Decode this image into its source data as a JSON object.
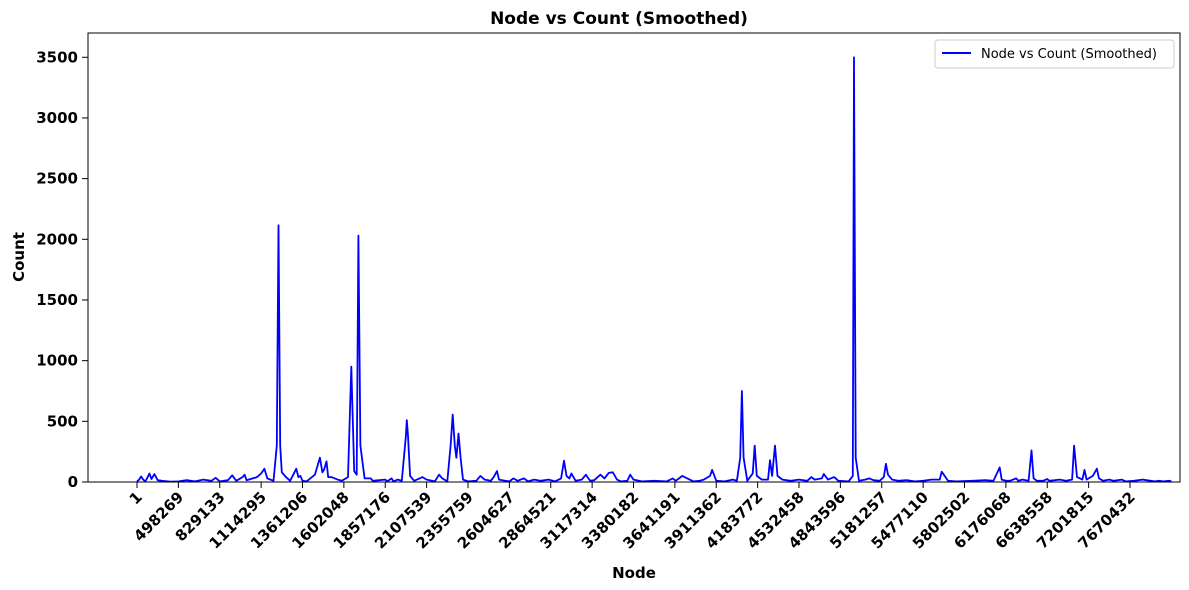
{
  "chart_data": {
    "type": "line",
    "title": "Node vs Count (Smoothed)",
    "xlabel": "Node",
    "ylabel": "Count",
    "ylim": [
      0,
      3700
    ],
    "yticks": [
      0,
      500,
      1000,
      1500,
      2000,
      2500,
      3000,
      3500
    ],
    "grid": false,
    "legend_position": "top-right",
    "colors": {
      "line": "#0000ff",
      "axes": "#000000"
    },
    "categories": [
      "1",
      "498269",
      "829133",
      "1114295",
      "1361206",
      "1602048",
      "1857176",
      "2107539",
      "2355759",
      "2604627",
      "2864521",
      "3117314",
      "3380182",
      "3641191",
      "3911362",
      "4183772",
      "4532458",
      "4843596",
      "5181257",
      "5477110",
      "5802502",
      "6176068",
      "6638558",
      "7201815",
      "7670432"
    ],
    "series": [
      {
        "name": "Node vs Count (Smoothed)",
        "points": [
          [
            0,
            5
          ],
          [
            0.05,
            20
          ],
          [
            0.1,
            45
          ],
          [
            0.15,
            20
          ],
          [
            0.2,
            5
          ],
          [
            0.25,
            35
          ],
          [
            0.3,
            70
          ],
          [
            0.35,
            25
          ],
          [
            0.42,
            65
          ],
          [
            0.5,
            15
          ],
          [
            0.6,
            10
          ],
          [
            0.8,
            3
          ],
          [
            1.0,
            5
          ],
          [
            1.2,
            15
          ],
          [
            1.4,
            5
          ],
          [
            1.6,
            20
          ],
          [
            1.8,
            10
          ],
          [
            1.9,
            35
          ],
          [
            2.0,
            5
          ],
          [
            2.2,
            15
          ],
          [
            2.3,
            55
          ],
          [
            2.4,
            10
          ],
          [
            2.55,
            40
          ],
          [
            2.6,
            60
          ],
          [
            2.65,
            15
          ],
          [
            2.8,
            30
          ],
          [
            2.9,
            40
          ],
          [
            3.0,
            70
          ],
          [
            3.08,
            110
          ],
          [
            3.15,
            30
          ],
          [
            3.3,
            10
          ],
          [
            3.38,
            300
          ],
          [
            3.42,
            2115
          ],
          [
            3.46,
            300
          ],
          [
            3.5,
            80
          ],
          [
            3.6,
            40
          ],
          [
            3.7,
            10
          ],
          [
            3.85,
            110
          ],
          [
            3.9,
            40
          ],
          [
            3.95,
            50
          ],
          [
            4.0,
            10
          ],
          [
            4.1,
            5
          ],
          [
            4.3,
            60
          ],
          [
            4.42,
            200
          ],
          [
            4.48,
            80
          ],
          [
            4.52,
            100
          ],
          [
            4.58,
            170
          ],
          [
            4.62,
            40
          ],
          [
            4.7,
            40
          ],
          [
            4.78,
            30
          ],
          [
            4.85,
            20
          ],
          [
            4.95,
            10
          ],
          [
            5.1,
            40
          ],
          [
            5.18,
            950
          ],
          [
            5.25,
            90
          ],
          [
            5.31,
            60
          ],
          [
            5.35,
            2030
          ],
          [
            5.4,
            300
          ],
          [
            5.5,
            30
          ],
          [
            5.65,
            30
          ],
          [
            5.7,
            10
          ],
          [
            6.0,
            20
          ],
          [
            6.05,
            5
          ],
          [
            6.15,
            30
          ],
          [
            6.2,
            5
          ],
          [
            6.3,
            20
          ],
          [
            6.4,
            10
          ],
          [
            6.5,
            380
          ],
          [
            6.52,
            510
          ],
          [
            6.55,
            380
          ],
          [
            6.6,
            50
          ],
          [
            6.7,
            10
          ],
          [
            6.9,
            40
          ],
          [
            7.0,
            20
          ],
          [
            7.2,
            5
          ],
          [
            7.3,
            60
          ],
          [
            7.38,
            30
          ],
          [
            7.5,
            5
          ],
          [
            7.58,
            300
          ],
          [
            7.63,
            555
          ],
          [
            7.68,
            300
          ],
          [
            7.72,
            200
          ],
          [
            7.77,
            400
          ],
          [
            7.82,
            200
          ],
          [
            7.88,
            20
          ],
          [
            8.0,
            5
          ],
          [
            8.2,
            10
          ],
          [
            8.3,
            50
          ],
          [
            8.4,
            20
          ],
          [
            8.55,
            10
          ],
          [
            8.62,
            40
          ],
          [
            8.7,
            90
          ],
          [
            8.75,
            20
          ],
          [
            8.9,
            10
          ],
          [
            9.0,
            5
          ],
          [
            9.1,
            30
          ],
          [
            9.2,
            10
          ],
          [
            9.35,
            30
          ],
          [
            9.45,
            5
          ],
          [
            9.6,
            20
          ],
          [
            9.75,
            10
          ],
          [
            9.95,
            20
          ],
          [
            10.1,
            5
          ],
          [
            10.25,
            30
          ],
          [
            10.32,
            175
          ],
          [
            10.38,
            50
          ],
          [
            10.45,
            30
          ],
          [
            10.5,
            70
          ],
          [
            10.6,
            10
          ],
          [
            10.75,
            20
          ],
          [
            10.85,
            60
          ],
          [
            10.95,
            10
          ],
          [
            11.05,
            15
          ],
          [
            11.2,
            60
          ],
          [
            11.3,
            30
          ],
          [
            11.4,
            75
          ],
          [
            11.5,
            80
          ],
          [
            11.6,
            20
          ],
          [
            11.7,
            5
          ],
          [
            11.85,
            10
          ],
          [
            11.92,
            60
          ],
          [
            12.0,
            20
          ],
          [
            12.2,
            5
          ],
          [
            12.5,
            10
          ],
          [
            12.8,
            5
          ],
          [
            12.95,
            30
          ],
          [
            13.02,
            10
          ],
          [
            13.1,
            30
          ],
          [
            13.18,
            50
          ],
          [
            13.3,
            30
          ],
          [
            13.45,
            5
          ],
          [
            13.6,
            10
          ],
          [
            13.7,
            20
          ],
          [
            13.85,
            50
          ],
          [
            13.9,
            100
          ],
          [
            14.0,
            10
          ],
          [
            14.2,
            5
          ],
          [
            14.4,
            20
          ],
          [
            14.5,
            10
          ],
          [
            14.58,
            200
          ],
          [
            14.62,
            750
          ],
          [
            14.66,
            200
          ],
          [
            14.75,
            10
          ],
          [
            14.88,
            70
          ],
          [
            14.93,
            300
          ],
          [
            14.98,
            50
          ],
          [
            15.1,
            20
          ],
          [
            15.25,
            20
          ],
          [
            15.3,
            180
          ],
          [
            15.35,
            50
          ],
          [
            15.42,
            300
          ],
          [
            15.48,
            50
          ],
          [
            15.6,
            20
          ],
          [
            15.8,
            10
          ],
          [
            16.0,
            20
          ],
          [
            16.2,
            10
          ],
          [
            16.3,
            40
          ],
          [
            16.38,
            20
          ],
          [
            16.55,
            30
          ],
          [
            16.6,
            65
          ],
          [
            16.7,
            20
          ],
          [
            16.85,
            40
          ],
          [
            16.95,
            10
          ],
          [
            17.2,
            5
          ],
          [
            17.3,
            50
          ],
          [
            17.33,
            3500
          ],
          [
            17.37,
            200
          ],
          [
            17.45,
            10
          ],
          [
            17.6,
            20
          ],
          [
            17.7,
            30
          ],
          [
            17.8,
            15
          ],
          [
            17.95,
            10
          ],
          [
            18.05,
            40
          ],
          [
            18.1,
            150
          ],
          [
            18.15,
            60
          ],
          [
            18.25,
            20
          ],
          [
            18.4,
            10
          ],
          [
            18.6,
            15
          ],
          [
            18.8,
            5
          ],
          [
            19.0,
            10
          ],
          [
            19.2,
            20
          ],
          [
            19.4,
            20
          ],
          [
            19.45,
            85
          ],
          [
            19.5,
            60
          ],
          [
            19.6,
            10
          ],
          [
            19.8,
            5
          ],
          [
            20.2,
            10
          ],
          [
            20.5,
            15
          ],
          [
            20.7,
            10
          ],
          [
            20.85,
            120
          ],
          [
            20.9,
            20
          ],
          [
            21.0,
            10
          ],
          [
            21.1,
            10
          ],
          [
            21.25,
            30
          ],
          [
            21.3,
            10
          ],
          [
            21.4,
            20
          ],
          [
            21.55,
            10
          ],
          [
            21.62,
            260
          ],
          [
            21.67,
            30
          ],
          [
            21.75,
            10
          ],
          [
            21.9,
            10
          ],
          [
            22.0,
            25
          ],
          [
            22.05,
            10
          ],
          [
            22.3,
            20
          ],
          [
            22.45,
            10
          ],
          [
            22.6,
            20
          ],
          [
            22.65,
            300
          ],
          [
            22.72,
            40
          ],
          [
            22.85,
            20
          ],
          [
            22.9,
            100
          ],
          [
            22.95,
            20
          ],
          [
            23.1,
            50
          ],
          [
            23.2,
            110
          ],
          [
            23.25,
            30
          ],
          [
            23.35,
            10
          ],
          [
            23.5,
            20
          ],
          [
            23.6,
            10
          ],
          [
            23.8,
            20
          ],
          [
            23.9,
            5
          ],
          [
            24.1,
            10
          ],
          [
            24.3,
            20
          ],
          [
            24.5,
            10
          ],
          [
            24.6,
            5
          ],
          [
            24.7,
            10
          ],
          [
            24.8,
            5
          ],
          [
            24.95,
            10
          ],
          [
            25.0,
            5
          ]
        ]
      }
    ]
  }
}
